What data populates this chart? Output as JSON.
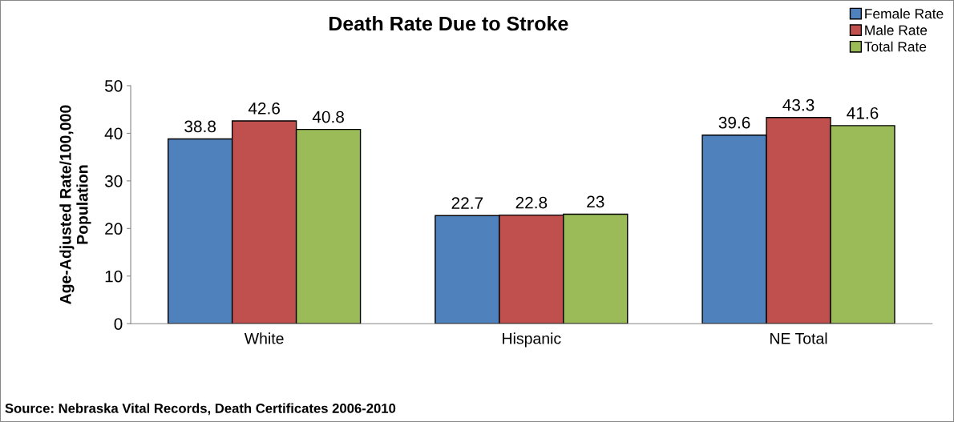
{
  "chart_data": {
    "type": "bar",
    "title": "Death Rate Due to Stroke",
    "ylabel": "Age-Adjusted Rate/100,000\nPopulation",
    "categories": [
      "White",
      "Hispanic",
      "NE Total"
    ],
    "series": [
      {
        "name": "Female Rate",
        "color": "#4f81bd",
        "values": [
          38.8,
          22.7,
          39.6
        ]
      },
      {
        "name": "Male Rate",
        "color": "#c0504d",
        "values": [
          42.6,
          22.8,
          43.3
        ]
      },
      {
        "name": "Total Rate",
        "color": "#9bbb59",
        "values": [
          40.8,
          23,
          41.6
        ]
      }
    ],
    "ylim": [
      0,
      50
    ],
    "yticks": [
      0,
      10,
      20,
      30,
      40,
      50
    ],
    "grid": false,
    "legend": "top right",
    "data_labels": true,
    "annotations": [
      "Source: Nebraska Vital Records, Death Certificates 2006-2010"
    ]
  }
}
